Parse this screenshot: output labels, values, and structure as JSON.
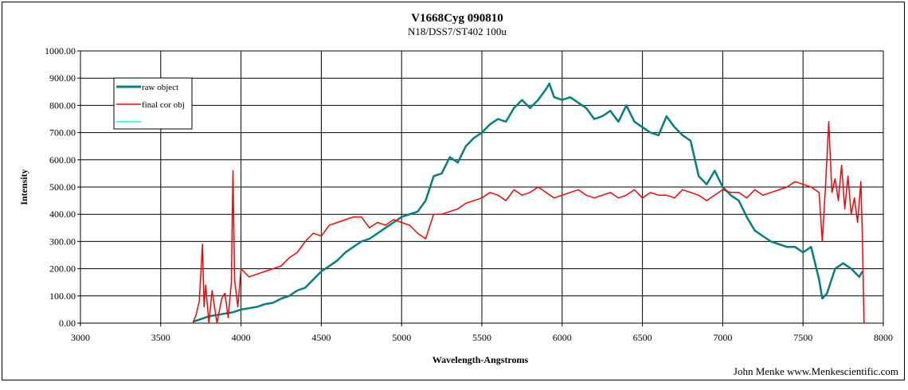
{
  "chart_data": {
    "type": "line",
    "title": "V1668Cyg 090810",
    "subtitle": "N18/DSS7/ST402  100u",
    "xlabel": "Wavelength-Angstroms",
    "ylabel": "Intensity",
    "xlim": [
      3000,
      8000
    ],
    "ylim": [
      0,
      1000
    ],
    "x_ticks": [
      "3000",
      "3500",
      "4000",
      "4500",
      "5000",
      "5500",
      "6000",
      "6500",
      "7000",
      "7500",
      "8000"
    ],
    "y_ticks": [
      "0.00",
      "100.00",
      "200.00",
      "300.00",
      "400.00",
      "500.00",
      "600.00",
      "700.00",
      "800.00",
      "900.00",
      "1000.00"
    ],
    "grid": true,
    "legend_position": "top-left",
    "series": [
      {
        "name": "raw object",
        "color": "#008080",
        "x": [
          3700,
          3750,
          3800,
          3850,
          3900,
          3950,
          4000,
          4050,
          4100,
          4150,
          4200,
          4250,
          4300,
          4350,
          4400,
          4450,
          4500,
          4550,
          4600,
          4650,
          4700,
          4750,
          4800,
          4850,
          4900,
          4950,
          5000,
          5050,
          5100,
          5150,
          5200,
          5250,
          5300,
          5350,
          5400,
          5450,
          5500,
          5550,
          5600,
          5650,
          5700,
          5750,
          5800,
          5850,
          5900,
          5920,
          5950,
          6000,
          6050,
          6100,
          6150,
          6200,
          6250,
          6300,
          6350,
          6400,
          6450,
          6500,
          6550,
          6600,
          6650,
          6700,
          6750,
          6800,
          6850,
          6900,
          6950,
          7000,
          7050,
          7100,
          7150,
          7200,
          7250,
          7300,
          7350,
          7400,
          7450,
          7500,
          7550,
          7600,
          7620,
          7650,
          7700,
          7750,
          7800,
          7850,
          7870
        ],
        "y": [
          5,
          15,
          25,
          30,
          35,
          40,
          50,
          55,
          60,
          70,
          75,
          90,
          100,
          120,
          130,
          160,
          190,
          210,
          230,
          260,
          280,
          300,
          310,
          330,
          350,
          370,
          390,
          400,
          410,
          450,
          540,
          550,
          610,
          590,
          650,
          680,
          700,
          730,
          750,
          740,
          790,
          820,
          790,
          820,
          860,
          880,
          830,
          820,
          830,
          810,
          790,
          750,
          760,
          780,
          740,
          800,
          740,
          720,
          700,
          690,
          760,
          720,
          690,
          670,
          540,
          510,
          560,
          500,
          470,
          450,
          390,
          340,
          320,
          300,
          290,
          280,
          280,
          260,
          280,
          160,
          90,
          110,
          200,
          220,
          200,
          170,
          190
        ]
      },
      {
        "name": "final cor obj",
        "color": "#ff0000",
        "x": [
          3700,
          3720,
          3740,
          3760,
          3770,
          3780,
          3800,
          3820,
          3850,
          3880,
          3900,
          3920,
          3940,
          3950,
          3960,
          3980,
          4000,
          4050,
          4100,
          4150,
          4200,
          4250,
          4300,
          4350,
          4400,
          4450,
          4500,
          4550,
          4600,
          4650,
          4700,
          4750,
          4800,
          4850,
          4900,
          4950,
          5000,
          5050,
          5100,
          5150,
          5200,
          5250,
          5300,
          5350,
          5400,
          5450,
          5500,
          5550,
          5600,
          5650,
          5700,
          5750,
          5800,
          5850,
          5900,
          5950,
          6000,
          6050,
          6100,
          6150,
          6200,
          6250,
          6300,
          6350,
          6400,
          6450,
          6500,
          6550,
          6600,
          6650,
          6700,
          6750,
          6800,
          6850,
          6900,
          6950,
          7000,
          7050,
          7100,
          7150,
          7200,
          7250,
          7300,
          7350,
          7400,
          7450,
          7500,
          7550,
          7600,
          7620,
          7640,
          7660,
          7680,
          7700,
          7720,
          7740,
          7760,
          7780,
          7800,
          7820,
          7840,
          7860,
          7870,
          7880
        ],
        "y": [
          0,
          30,
          80,
          290,
          60,
          140,
          0,
          120,
          0,
          90,
          110,
          20,
          150,
          560,
          160,
          60,
          200,
          170,
          180,
          190,
          200,
          210,
          240,
          260,
          300,
          330,
          320,
          360,
          370,
          380,
          390,
          390,
          350,
          370,
          360,
          380,
          370,
          360,
          330,
          310,
          400,
          400,
          410,
          420,
          440,
          450,
          460,
          480,
          470,
          450,
          490,
          470,
          480,
          500,
          480,
          460,
          470,
          480,
          490,
          470,
          460,
          470,
          480,
          460,
          470,
          490,
          460,
          480,
          470,
          470,
          460,
          490,
          480,
          470,
          450,
          470,
          490,
          480,
          480,
          460,
          490,
          470,
          480,
          490,
          500,
          520,
          510,
          500,
          480,
          300,
          500,
          740,
          480,
          530,
          450,
          580,
          420,
          540,
          400,
          460,
          370,
          520,
          310,
          0
        ]
      }
    ],
    "legend_third_color": "#00ffff"
  },
  "credit": "John Menke www.Menkescientific.com"
}
